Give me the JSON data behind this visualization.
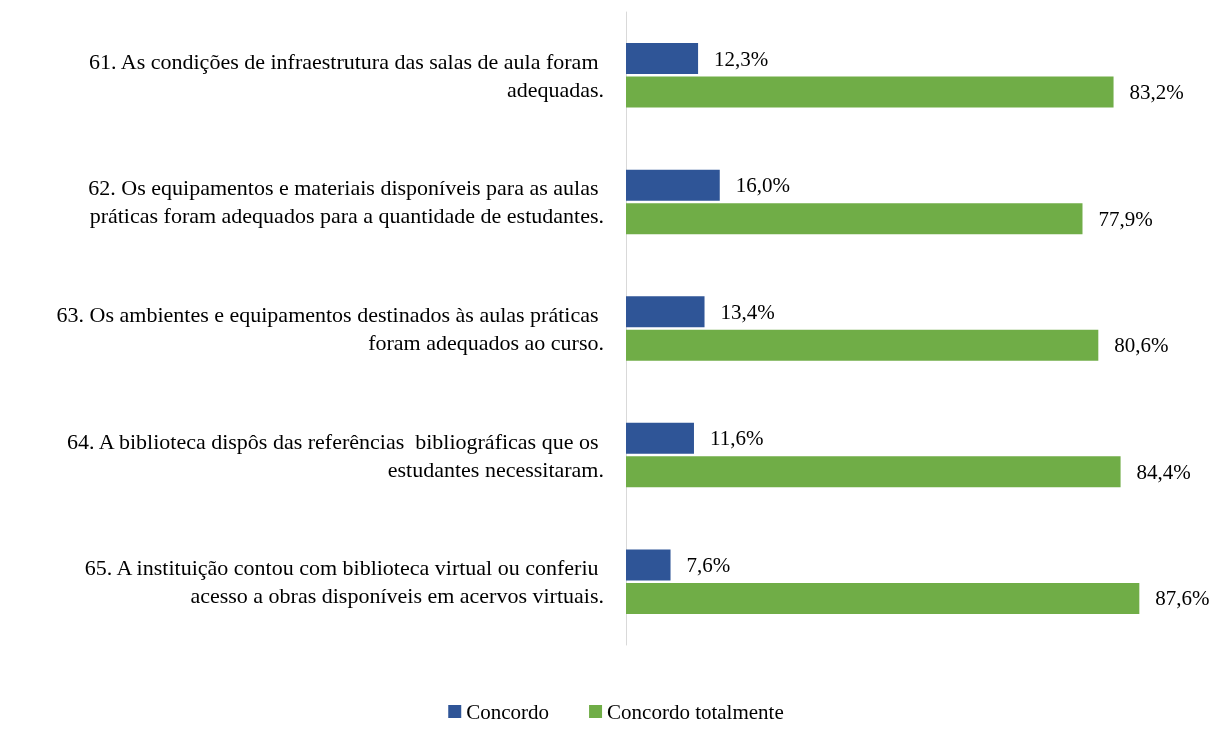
{
  "chart_data": {
    "type": "bar",
    "orientation": "horizontal",
    "categories": [
      "61. As condições de infraestrutura das salas de aula foram adequadas.",
      "62. Os equipamentos e materiais disponíveis para as aulas práticas foram adequados para a quantidade de estudantes.",
      "63. Os ambientes e equipamentos destinados às aulas práticas foram adequados ao curso.",
      "64. A biblioteca dispôs das referências  bibliográficas que os estudantes necessitaram.",
      "65. A instituição contou com biblioteca virtual ou conferiu acesso a obras disponíveis em acervos virtuais."
    ],
    "series": [
      {
        "name": "Concordo",
        "color": "#2f5597",
        "values": [
          12.3,
          16.0,
          13.4,
          11.6,
          7.6
        ],
        "value_labels": [
          "12,3%",
          "16,0%",
          "13,4%",
          "11,6%",
          "7,6%"
        ]
      },
      {
        "name": "Concordo totalmente",
        "color": "#70ad47",
        "values": [
          83.2,
          77.9,
          80.6,
          84.4,
          87.6
        ],
        "value_labels": [
          "83,2%",
          "77,9%",
          "80,6%",
          "84,4%",
          "87,6%"
        ]
      }
    ],
    "legend": "bottom",
    "grid": false
  }
}
